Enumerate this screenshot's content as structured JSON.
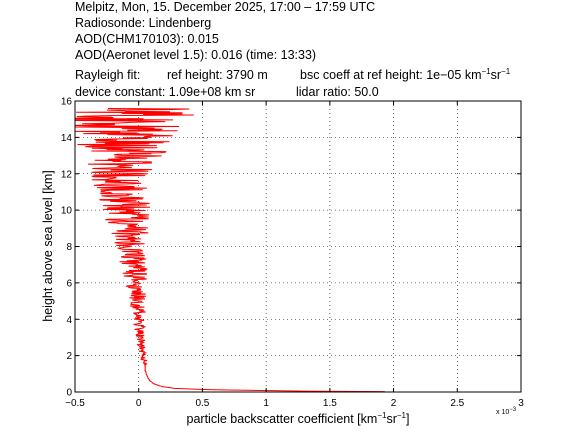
{
  "header": {
    "title_line": "Melpitz, Mon, 15. December 2025, 17:00 – 17:59 UTC",
    "radiosonde": "Radiosonde: Lindenberg",
    "aod_chm": "AOD(CHM170103): 0.015",
    "aod_aeronet": "AOD(Aeronet level 1.5): 0.016   (time: 13:33)",
    "rayleigh_label": "Rayleigh fit:",
    "ref_height": "ref height: 3790 m",
    "bsc_coeff_prefix": "bsc coeff at ref height: 1e−05 km",
    "bsc_coeff_exp1": "−1",
    "bsc_coeff_mid": "sr",
    "bsc_coeff_exp2": "−1",
    "device_constant": "device constant: 1.09e+08 km sr",
    "lidar_ratio": "lidar ratio: 50.0"
  },
  "chart_data": {
    "type": "line",
    "xlabel_text": "particle backscatter coefficient [km",
    "xlabel_exp1": "−1",
    "xlabel_mid": "sr",
    "xlabel_exp2": "−1",
    "xlabel_end": "]",
    "ylabel": "height above sea level [km]",
    "x_multiplier_label": "x 10",
    "x_multiplier_exp": "−3",
    "xlim": [
      -0.0005,
      0.003
    ],
    "ylim": [
      0,
      16
    ],
    "x_ticks": [
      -0.0005,
      0,
      0.0005,
      0.001,
      0.0015,
      0.002,
      0.0025,
      0.003
    ],
    "x_tick_labels": [
      "−0.5",
      "0",
      "0.5",
      "1",
      "1.5",
      "2",
      "2.5",
      "3"
    ],
    "y_ticks": [
      0,
      2,
      4,
      6,
      8,
      10,
      12,
      14,
      16
    ],
    "y_tick_labels": [
      "0",
      "2",
      "4",
      "6",
      "8",
      "10",
      "12",
      "14",
      "16"
    ],
    "grid": true,
    "line_color": "#ff0000",
    "series": [
      {
        "name": "",
        "height": [
          0.02,
          0.05,
          0.1,
          0.15,
          0.2,
          0.3,
          0.45,
          0.6,
          0.8,
          1.0,
          1.2,
          1.5,
          2.0,
          2.5,
          3.0,
          3.5,
          4.0,
          4.5,
          5.0,
          5.5,
          6.0,
          6.5,
          7.0,
          7.5,
          8.0,
          8.5,
          9.0,
          9.5,
          10.0,
          10.5,
          11.0,
          11.5,
          12.0,
          12.3,
          12.6,
          12.9,
          13.2,
          13.5,
          13.8,
          14.1,
          14.4,
          14.7,
          15.0,
          15.3,
          15.6
        ],
        "values": [
          0.00193,
          0.0013,
          0.00075,
          0.00045,
          0.00028,
          0.00018,
          0.00012,
          9e-05,
          7e-05,
          6e-05,
          5e-05,
          5e-05,
          4e-05,
          2e-05,
          1e-05,
          1e-05,
          0.0,
          0.0,
          -1e-05,
          -2e-05,
          -2e-05,
          -3e-05,
          -4e-05,
          -5e-05,
          -6e-05,
          -7e-05,
          -8e-05,
          -9e-05,
          -0.0001,
          -0.00011,
          -0.00012,
          -0.00013,
          -0.00015,
          -0.00014,
          -0.00012,
          -0.00013,
          -0.00011,
          -0.0001,
          -0.00012,
          -9e-05,
          -0.0001,
          -8e-05,
          -6e-05,
          -5e-05,
          -4e-05
        ]
      }
    ]
  }
}
